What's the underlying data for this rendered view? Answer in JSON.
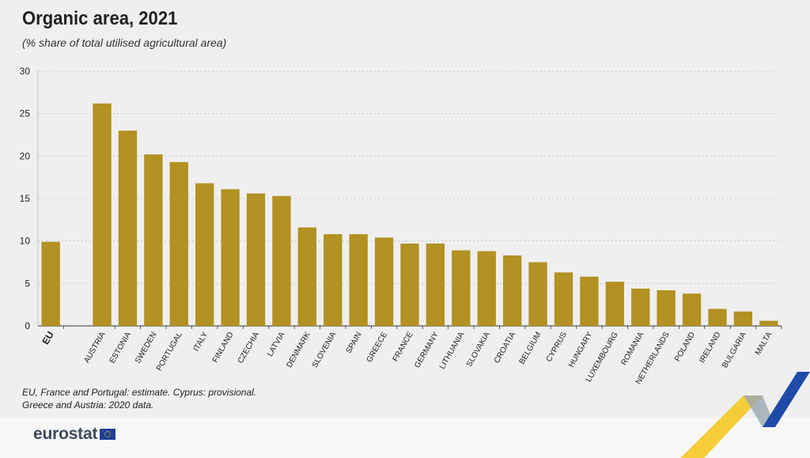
{
  "title": "Organic area, 2021",
  "subtitle": "(% share of total utilised agricultural area)",
  "notes": [
    "EU, France and Portugal: estimate.  Cyprus: provisional.",
    "Greece and Austria: 2020 data."
  ],
  "logo": {
    "text": "eurostat"
  },
  "colors": {
    "bar": "#b39122",
    "grid": "#c8c8c8",
    "axis": "#333333",
    "accent_yellow": "#f5c518",
    "accent_blue": "#1f4aa8"
  },
  "chart_data": {
    "type": "bar",
    "title": "Organic area, 2021",
    "subtitle": "(% share of total utilised agricultural area)",
    "ylim": [
      0,
      30
    ],
    "yticks": [
      0,
      5,
      10,
      15,
      20,
      25,
      30
    ],
    "grid": true,
    "gap_after_first": true,
    "bold_categories": [
      "EU"
    ],
    "categories": [
      "EU",
      "AUSTRIA",
      "ESTONIA",
      "SWEDEN",
      "PORTUGAL",
      "ITALY",
      "FINLAND",
      "CZECHIA",
      "LATVIA",
      "DENMARK",
      "SLOVENIA",
      "SPAIN",
      "GREECE",
      "FRANCE",
      "GERMANY",
      "LITHUANIA",
      "SLOVAKIA",
      "CROATIA",
      "BELGIUM",
      "CYPRUS",
      "HUNGARY",
      "LUXEMBOURG",
      "ROMANIA",
      "NETHERLANDS",
      "POLAND",
      "IRELAND",
      "BULGARIA",
      "MALTA"
    ],
    "values": [
      9.9,
      26.2,
      23.0,
      20.2,
      19.3,
      16.8,
      16.1,
      15.6,
      15.3,
      11.6,
      10.8,
      10.8,
      10.4,
      9.7,
      9.7,
      8.9,
      8.8,
      8.3,
      7.5,
      6.3,
      5.8,
      5.2,
      4.4,
      4.2,
      3.8,
      2.0,
      1.7,
      0.6
    ]
  }
}
